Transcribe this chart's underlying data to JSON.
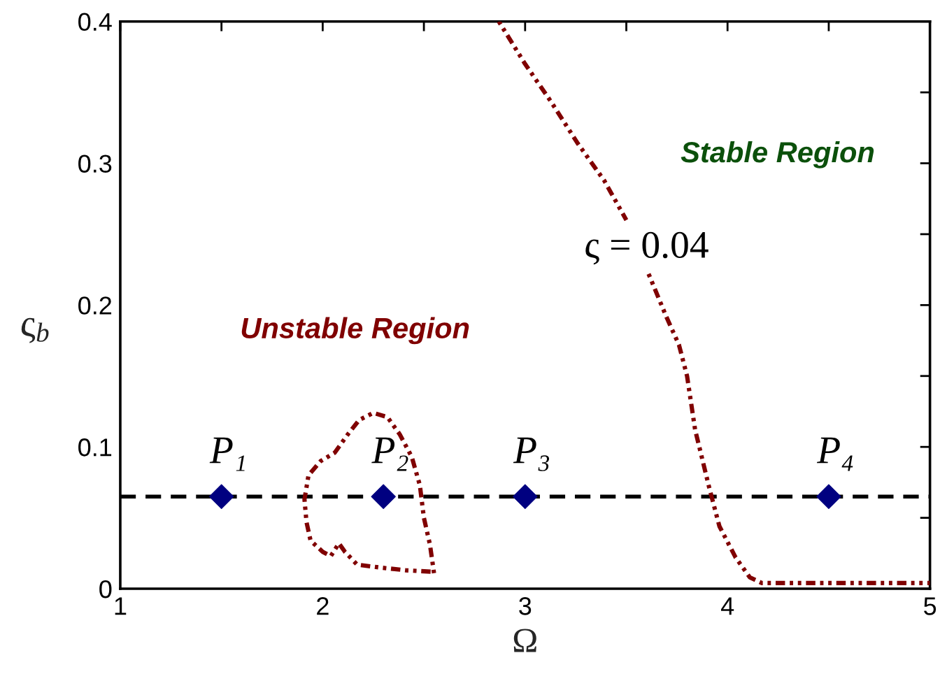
{
  "chart_data": {
    "type": "line",
    "xlabel": "Ω",
    "ylabel": "ς$_{b}$",
    "xlim": [
      1,
      5
    ],
    "ylim": [
      0,
      0.4
    ],
    "xticks": [
      1,
      {
        "value": 1.5,
        "label": null
      },
      2,
      {
        "value": 2.5,
        "label": null
      },
      3,
      {
        "value": 3.5,
        "label": null
      },
      4,
      {
        "value": 4.5,
        "label": null
      },
      5
    ],
    "yticks": [
      0,
      {
        "value": 0.05,
        "label": null
      },
      0.1,
      {
        "value": 0.15,
        "label": null
      },
      0.2,
      {
        "value": 0.25,
        "label": null
      },
      0.3,
      {
        "value": 0.35,
        "label": null
      },
      0.4
    ],
    "series": [
      {
        "color": "#800000",
        "line_style": "dotted",
        "x": [
          2.87,
          3.0,
          3.13,
          3.26,
          3.39,
          3.5,
          3.55,
          3.61,
          3.7,
          3.76,
          3.8,
          3.84,
          3.91,
          3.96,
          4.04,
          4.11,
          4.17,
          4.5,
          5.0
        ],
        "values": [
          0.4,
          0.37,
          0.343,
          0.314,
          0.288,
          0.26,
          null,
          0.222,
          0.191,
          0.172,
          0.15,
          0.112,
          0.071,
          0.044,
          0.022,
          0.008,
          0.004,
          0.004,
          0.004
        ]
      },
      {
        "color": "#800000",
        "line_style": "dotted",
        "x": [
          2.55,
          2.53,
          2.5,
          2.48,
          2.44,
          2.38,
          2.32,
          2.25,
          2.18,
          2.12,
          2.06,
          1.99,
          1.93,
          1.91,
          1.92,
          1.94,
          2.0,
          2.04,
          2.08,
          2.11,
          2.17,
          2.28,
          2.41,
          2.54
        ],
        "values": [
          0.011,
          0.031,
          0.05,
          0.073,
          0.093,
          0.109,
          0.121,
          0.124,
          0.119,
          0.108,
          0.096,
          0.09,
          0.08,
          0.063,
          0.047,
          0.034,
          0.026,
          0.023,
          0.032,
          0.026,
          0.017,
          0.015,
          0.013,
          0.012
        ]
      },
      {
        "type": "scatter",
        "color": "#000080",
        "marker": "diamond",
        "x": [
          1.5,
          2.3,
          3.0,
          4.5
        ],
        "values": [
          0.065,
          0.065,
          0.065,
          0.065
        ]
      }
    ],
    "ref_lines": [
      {
        "axis": "y",
        "value": 0.065,
        "color": "#000000",
        "line_style": "dashed"
      }
    ],
    "annotations": [
      "Stable Region",
      "Unstable Region",
      "ς = 0.04",
      {
        "text": "P₁",
        "x": 1.5,
        "y": 0.065
      },
      {
        "text": "P₂",
        "x": 2.3,
        "y": 0.065
      },
      {
        "text": "P₃",
        "x": 3.0,
        "y": 0.065
      },
      {
        "text": "P₄",
        "x": 4.5,
        "y": 0.065
      }
    ]
  }
}
